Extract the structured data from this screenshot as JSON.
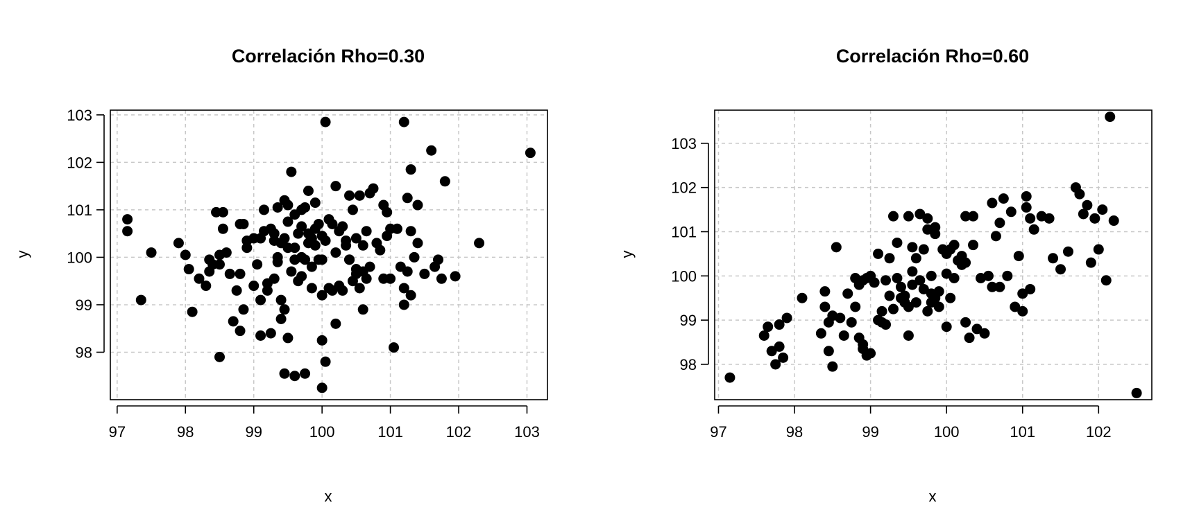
{
  "chart_data": [
    {
      "type": "scatter",
      "title": "Correlación Rho=0.30",
      "xlabel": "x",
      "ylabel": "y",
      "xlim": [
        96.9,
        103.3
      ],
      "ylim": [
        97.0,
        103.1
      ],
      "x_ticks": [
        97,
        98,
        99,
        100,
        101,
        102,
        103
      ],
      "y_ticks": [
        98,
        99,
        100,
        101,
        102,
        103
      ],
      "grid": true,
      "point_color": "#000000",
      "x": [
        97.15,
        97.15,
        97.35,
        97.5,
        97.9,
        98.0,
        98.05,
        98.1,
        98.2,
        98.3,
        98.35,
        98.35,
        98.4,
        98.45,
        98.5,
        98.5,
        98.55,
        98.55,
        98.6,
        98.65,
        98.7,
        98.75,
        98.8,
        98.8,
        98.8,
        98.85,
        98.85,
        98.9,
        98.9,
        99.0,
        99.05,
        99.1,
        99.1,
        99.1,
        99.15,
        99.15,
        99.2,
        99.2,
        99.25,
        99.25,
        99.3,
        99.3,
        99.3,
        99.35,
        99.35,
        99.35,
        99.4,
        99.4,
        99.4,
        99.45,
        99.45,
        99.45,
        99.5,
        99.5,
        99.5,
        99.5,
        99.55,
        99.55,
        99.6,
        99.6,
        99.6,
        99.65,
        99.65,
        99.7,
        99.7,
        99.7,
        99.75,
        99.75,
        99.8,
        99.8,
        99.8,
        99.85,
        99.85,
        99.85,
        99.9,
        99.9,
        99.9,
        99.95,
        99.95,
        100.0,
        100.0,
        100.0,
        100.0,
        100.05,
        100.05,
        100.1,
        100.1,
        100.15,
        100.15,
        100.2,
        100.2,
        100.25,
        100.25,
        100.3,
        100.3,
        100.35,
        100.35,
        100.4,
        100.4,
        100.45,
        100.45,
        100.5,
        100.5,
        100.5,
        100.55,
        100.55,
        100.6,
        100.6,
        100.6,
        100.65,
        100.65,
        100.7,
        100.7,
        100.75,
        100.8,
        100.85,
        100.9,
        100.9,
        100.95,
        101.0,
        101.0,
        101.05,
        101.1,
        101.15,
        101.2,
        101.2,
        101.25,
        101.25,
        101.3,
        101.3,
        101.3,
        101.35,
        101.4,
        101.4,
        101.5,
        101.6,
        101.65,
        101.7,
        101.75,
        101.8,
        101.95,
        102.3,
        103.05,
        100.05,
        101.2,
        99.6,
        99.75,
        99.7,
        99.45,
        100.0,
        100.2,
        99.0,
        98.5,
        100.4,
        100.95
      ],
      "y": [
        100.8,
        100.55,
        99.1,
        100.1,
        100.3,
        100.05,
        99.75,
        98.85,
        99.55,
        99.4,
        99.7,
        99.95,
        99.85,
        100.95,
        97.9,
        99.85,
        100.95,
        100.6,
        100.1,
        99.65,
        98.65,
        99.3,
        100.7,
        99.65,
        98.45,
        100.7,
        98.9,
        100.35,
        100.2,
        100.4,
        99.85,
        99.1,
        100.4,
        98.35,
        100.55,
        101.0,
        99.45,
        99.3,
        100.6,
        98.4,
        100.35,
        100.5,
        99.55,
        100.0,
        99.9,
        101.05,
        100.3,
        99.1,
        98.7,
        101.2,
        100.4,
        98.9,
        101.1,
        100.75,
        100.2,
        98.3,
        101.8,
        99.7,
        100.9,
        100.2,
        99.95,
        100.5,
        99.5,
        101.0,
        100.65,
        99.6,
        101.05,
        99.95,
        100.3,
        101.4,
        100.5,
        100.4,
        99.8,
        99.35,
        101.15,
        100.6,
        100.25,
        100.7,
        99.95,
        98.25,
        99.95,
        99.2,
        100.45,
        102.85,
        100.35,
        100.8,
        99.35,
        100.7,
        99.3,
        101.5,
        100.1,
        99.4,
        100.55,
        100.65,
        99.3,
        100.35,
        100.25,
        101.3,
        99.95,
        101.0,
        99.5,
        100.4,
        99.75,
        99.65,
        101.3,
        99.35,
        100.25,
        99.7,
        98.9,
        100.55,
        99.55,
        101.35,
        99.8,
        101.45,
        100.3,
        100.15,
        101.1,
        99.55,
        100.45,
        100.6,
        99.55,
        98.1,
        100.6,
        99.8,
        102.85,
        99.0,
        101.25,
        99.7,
        101.85,
        100.55,
        99.2,
        100.0,
        101.1,
        100.3,
        99.65,
        102.25,
        99.8,
        99.95,
        99.55,
        101.6,
        99.6,
        100.3,
        102.2,
        97.8,
        99.35,
        97.5,
        97.55,
        100.0,
        97.55,
        97.25,
        98.6,
        99.4,
        100.05,
        99.95,
        100.95
      ],
      "point_style": "filled-circle"
    },
    {
      "type": "scatter",
      "title": "Correlación Rho=0.60",
      "xlabel": "x",
      "ylabel": "y",
      "xlim": [
        96.95,
        102.7
      ],
      "ylim": [
        97.2,
        103.75
      ],
      "x_ticks": [
        97,
        98,
        99,
        100,
        101,
        102
      ],
      "y_ticks": [
        98,
        99,
        100,
        101,
        102,
        103
      ],
      "grid": true,
      "point_color": "#000000",
      "x": [
        97.15,
        97.6,
        97.65,
        97.7,
        97.75,
        97.8,
        97.8,
        97.85,
        97.9,
        98.1,
        98.35,
        98.4,
        98.4,
        98.45,
        98.45,
        98.5,
        98.5,
        98.55,
        98.6,
        98.65,
        98.7,
        98.75,
        98.8,
        98.8,
        98.85,
        98.85,
        98.9,
        98.9,
        98.95,
        98.95,
        99.0,
        99.0,
        99.05,
        99.1,
        99.1,
        99.15,
        99.2,
        99.2,
        99.25,
        99.25,
        99.3,
        99.3,
        99.35,
        99.35,
        99.4,
        99.4,
        99.45,
        99.45,
        99.5,
        99.5,
        99.55,
        99.55,
        99.6,
        99.6,
        99.65,
        99.65,
        99.7,
        99.7,
        99.75,
        99.75,
        99.8,
        99.8,
        99.8,
        99.85,
        99.85,
        99.9,
        99.9,
        99.95,
        100.0,
        100.0,
        100.05,
        100.05,
        100.1,
        100.1,
        100.15,
        100.2,
        100.2,
        100.25,
        100.25,
        100.3,
        100.35,
        100.4,
        100.45,
        100.5,
        100.55,
        100.6,
        100.6,
        100.65,
        100.7,
        100.7,
        100.75,
        100.8,
        100.85,
        100.9,
        100.95,
        101.0,
        101.0,
        101.05,
        101.05,
        101.1,
        101.15,
        101.25,
        101.35,
        101.4,
        101.5,
        101.6,
        101.7,
        101.75,
        101.8,
        101.85,
        101.9,
        101.95,
        102.0,
        102.05,
        102.1,
        102.15,
        102.2,
        102.5,
        99.5,
        100.0,
        98.9,
        99.15,
        99.75,
        100.35,
        101.1,
        99.85,
        100.25,
        99.55
      ],
      "y": [
        97.7,
        98.65,
        98.85,
        98.3,
        98.0,
        98.4,
        98.9,
        98.15,
        99.05,
        99.5,
        98.7,
        99.65,
        99.3,
        98.95,
        98.3,
        97.95,
        99.1,
        100.65,
        99.05,
        98.65,
        99.6,
        98.95,
        99.95,
        99.3,
        99.8,
        98.6,
        99.9,
        98.35,
        98.2,
        99.95,
        100.0,
        98.25,
        99.85,
        100.5,
        99.0,
        99.2,
        98.9,
        99.9,
        100.4,
        99.55,
        101.35,
        99.25,
        99.95,
        100.75,
        99.5,
        99.75,
        99.4,
        99.55,
        101.35,
        99.3,
        100.1,
        99.8,
        100.4,
        99.4,
        101.4,
        99.9,
        99.7,
        100.6,
        101.3,
        99.2,
        99.6,
        100.0,
        99.4,
        99.5,
        101.1,
        99.65,
        99.3,
        100.6,
        100.05,
        100.5,
        99.5,
        100.6,
        100.7,
        99.95,
        100.35,
        100.25,
        100.45,
        101.35,
        98.95,
        98.6,
        100.7,
        98.8,
        99.95,
        98.7,
        100.0,
        101.65,
        99.75,
        100.9,
        101.2,
        99.75,
        101.75,
        100.0,
        101.45,
        99.3,
        100.45,
        99.6,
        99.2,
        101.55,
        101.8,
        101.3,
        101.05,
        101.35,
        101.3,
        100.4,
        100.15,
        100.55,
        102.0,
        101.85,
        101.4,
        101.6,
        100.3,
        101.3,
        100.6,
        101.5,
        99.9,
        103.6,
        101.25,
        97.35,
        98.65,
        98.85,
        98.45,
        98.95,
        101.05,
        101.35,
        99.7,
        100.95,
        100.3,
        100.65
      ],
      "point_style": "filled-circle"
    }
  ]
}
